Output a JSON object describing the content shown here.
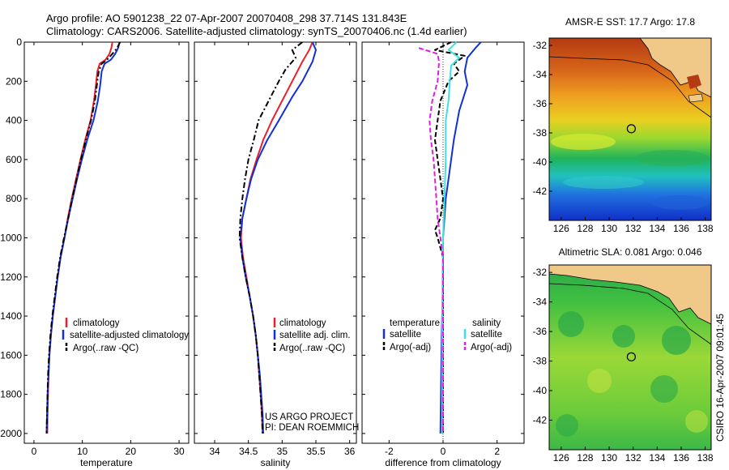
{
  "header": {
    "line1": "Argo profile: AO 5901238_22 07-Apr-2007 20070408_298 37.714S 131.843E",
    "line2": "Climatology: CARS2006. Satellite-adjusted climatology: synTS_20070406.nc (1.4d earlier)"
  },
  "side_text": "CSIRO 16-Apr-2007 09:01:45",
  "colors": {
    "red": "#e8202a",
    "blue": "#1030d8",
    "black": "#000000",
    "cyan": "#40e0e0",
    "magenta": "#e020e0"
  },
  "chart_data": [
    {
      "type": "line",
      "name": "temperature",
      "xlabel": "temperature",
      "xlim": [
        -2,
        32
      ],
      "ylim": [
        0,
        2050
      ],
      "xticks": [
        0,
        10,
        20,
        30
      ],
      "yticks": [
        0,
        200,
        400,
        600,
        800,
        1000,
        1200,
        1400,
        1600,
        1800,
        2000
      ],
      "legend": [
        "climatology",
        "satellite-adjusted climatology",
        "Argo(..raw -QC)"
      ],
      "series": [
        {
          "name": "climatology",
          "color": "red",
          "style": "solid",
          "points": [
            [
              16.2,
              0
            ],
            [
              16.0,
              30
            ],
            [
              15.6,
              60
            ],
            [
              14.8,
              90
            ],
            [
              13.6,
              110
            ],
            [
              13.1,
              150
            ],
            [
              12.8,
              220
            ],
            [
              12.4,
              300
            ],
            [
              11.7,
              400
            ],
            [
              10.6,
              500
            ],
            [
              9.6,
              600
            ],
            [
              8.7,
              700
            ],
            [
              7.8,
              800
            ],
            [
              7.0,
              900
            ],
            [
              6.3,
              1000
            ],
            [
              5.5,
              1100
            ],
            [
              4.9,
              1200
            ],
            [
              4.4,
              1300
            ],
            [
              3.9,
              1400
            ],
            [
              3.5,
              1500
            ],
            [
              3.2,
              1600
            ],
            [
              3.0,
              1700
            ],
            [
              2.9,
              1800
            ],
            [
              2.8,
              1900
            ],
            [
              2.75,
              2000
            ]
          ]
        },
        {
          "name": "satellite-adjusted climatology",
          "color": "blue",
          "style": "solid",
          "points": [
            [
              17.7,
              0
            ],
            [
              17.4,
              30
            ],
            [
              16.8,
              60
            ],
            [
              15.9,
              90
            ],
            [
              14.6,
              110
            ],
            [
              14.0,
              150
            ],
            [
              13.7,
              220
            ],
            [
              13.2,
              300
            ],
            [
              12.3,
              400
            ],
            [
              11.0,
              500
            ],
            [
              9.9,
              600
            ],
            [
              8.9,
              700
            ],
            [
              8.0,
              800
            ],
            [
              7.1,
              900
            ],
            [
              6.3,
              1000
            ],
            [
              5.5,
              1100
            ],
            [
              4.9,
              1200
            ],
            [
              4.4,
              1300
            ],
            [
              3.9,
              1400
            ],
            [
              3.5,
              1500
            ],
            [
              3.2,
              1600
            ],
            [
              3.0,
              1700
            ],
            [
              2.8,
              1800
            ],
            [
              2.7,
              1900
            ],
            [
              2.6,
              2000
            ]
          ]
        },
        {
          "name": "Argo(..raw -QC)",
          "color": "black",
          "style": "dashdot",
          "points": [
            [
              17.8,
              0
            ],
            [
              17.2,
              30
            ],
            [
              16.2,
              60
            ],
            [
              15.1,
              90
            ],
            [
              14.0,
              110
            ],
            [
              13.4,
              150
            ],
            [
              13.0,
              220
            ],
            [
              12.6,
              300
            ],
            [
              11.8,
              400
            ],
            [
              10.7,
              500
            ],
            [
              9.7,
              600
            ],
            [
              8.8,
              700
            ],
            [
              7.9,
              800
            ],
            [
              7.1,
              900
            ],
            [
              6.2,
              1000
            ],
            [
              5.4,
              1100
            ],
            [
              4.8,
              1200
            ],
            [
              4.3,
              1300
            ],
            [
              3.8,
              1400
            ],
            [
              3.4,
              1500
            ],
            [
              3.1,
              1600
            ],
            [
              2.9,
              1700
            ],
            [
              2.8,
              1800
            ],
            [
              2.7,
              1900
            ],
            [
              2.6,
              2000
            ]
          ]
        }
      ]
    },
    {
      "type": "line",
      "name": "salinity",
      "xlabel": "salinity",
      "xlim": [
        33.7,
        36.1
      ],
      "ylim": [
        0,
        2050
      ],
      "xticks": [
        34,
        34.5,
        35,
        35.5,
        36
      ],
      "yticks": [
        0,
        200,
        400,
        600,
        800,
        1000,
        1200,
        1400,
        1600,
        1800,
        2000
      ],
      "legend": [
        "climatology",
        "satellite adj. clim.",
        "Argo(..raw -QC)"
      ],
      "annotation": [
        "US ARGO PROJECT",
        "PI: DEAN ROEMMICH"
      ],
      "series": [
        {
          "name": "climatology",
          "color": "red",
          "style": "solid",
          "points": [
            [
              35.45,
              0
            ],
            [
              35.4,
              40
            ],
            [
              35.3,
              100
            ],
            [
              35.15,
              200
            ],
            [
              35.0,
              300
            ],
            [
              34.85,
              400
            ],
            [
              34.72,
              500
            ],
            [
              34.62,
              600
            ],
            [
              34.53,
              700
            ],
            [
              34.47,
              800
            ],
            [
              34.41,
              900
            ],
            [
              34.39,
              1000
            ],
            [
              34.42,
              1100
            ],
            [
              34.47,
              1200
            ],
            [
              34.52,
              1300
            ],
            [
              34.57,
              1400
            ],
            [
              34.61,
              1500
            ],
            [
              34.64,
              1600
            ],
            [
              34.66,
              1700
            ],
            [
              34.68,
              1800
            ],
            [
              34.7,
              1900
            ],
            [
              34.71,
              2000
            ]
          ]
        },
        {
          "name": "satellite adj. clim.",
          "color": "blue",
          "style": "solid",
          "points": [
            [
              35.45,
              0
            ],
            [
              35.5,
              40
            ],
            [
              35.45,
              100
            ],
            [
              35.3,
              200
            ],
            [
              35.15,
              280
            ],
            [
              34.95,
              400
            ],
            [
              34.78,
              500
            ],
            [
              34.64,
              600
            ],
            [
              34.54,
              700
            ],
            [
              34.47,
              800
            ],
            [
              34.41,
              900
            ],
            [
              34.38,
              1000
            ],
            [
              34.41,
              1100
            ],
            [
              34.46,
              1200
            ],
            [
              34.52,
              1300
            ],
            [
              34.57,
              1400
            ],
            [
              34.61,
              1500
            ],
            [
              34.64,
              1600
            ],
            [
              34.67,
              1700
            ],
            [
              34.69,
              1800
            ],
            [
              34.71,
              1900
            ],
            [
              34.72,
              2000
            ]
          ]
        },
        {
          "name": "Argo(..raw -QC)",
          "color": "black",
          "style": "dashdot",
          "points": [
            [
              35.3,
              0
            ],
            [
              35.15,
              40
            ],
            [
              35.2,
              80
            ],
            [
              35.05,
              140
            ],
            [
              34.95,
              200
            ],
            [
              34.8,
              300
            ],
            [
              34.65,
              400
            ],
            [
              34.58,
              500
            ],
            [
              34.5,
              600
            ],
            [
              34.45,
              700
            ],
            [
              34.41,
              800
            ],
            [
              34.38,
              900
            ],
            [
              34.37,
              1000
            ],
            [
              34.41,
              1100
            ],
            [
              34.46,
              1200
            ],
            [
              34.52,
              1300
            ],
            [
              34.57,
              1400
            ],
            [
              34.61,
              1500
            ],
            [
              34.64,
              1600
            ],
            [
              34.66,
              1700
            ],
            [
              34.68,
              1800
            ],
            [
              34.7,
              1900
            ],
            [
              34.71,
              2000
            ]
          ]
        }
      ]
    },
    {
      "type": "line",
      "name": "difference",
      "xlabel": "difference from climatology",
      "xlim": [
        -3,
        3
      ],
      "ylim": [
        0,
        2050
      ],
      "xticks": [
        -2,
        0,
        2
      ],
      "yticks": [
        0,
        200,
        400,
        600,
        800,
        1000,
        1200,
        1400,
        1600,
        1800,
        2000
      ],
      "legend_left_title": "temperature",
      "legend_right_title": "salinity",
      "legend": [
        "satellite",
        "Argo(-adj)",
        "satellite",
        "Argo(-adj)"
      ],
      "series": [
        {
          "name": "temperature satellite",
          "color": "blue",
          "style": "solid",
          "points": [
            [
              1.4,
              0
            ],
            [
              1.2,
              30
            ],
            [
              0.9,
              80
            ],
            [
              0.8,
              150
            ],
            [
              0.9,
              220
            ],
            [
              0.6,
              350
            ],
            [
              0.4,
              500
            ],
            [
              0.3,
              600
            ],
            [
              0.2,
              700
            ],
            [
              0.1,
              800
            ],
            [
              0.05,
              900
            ],
            [
              0.0,
              1000
            ],
            [
              0.0,
              1200
            ],
            [
              -0.05,
              1500
            ],
            [
              -0.1,
              2000
            ]
          ]
        },
        {
          "name": "temperature Argo(-adj)",
          "color": "black",
          "style": "dashed",
          "points": [
            [
              0.3,
              0
            ],
            [
              -0.3,
              40
            ],
            [
              0.8,
              70
            ],
            [
              0.4,
              110
            ],
            [
              0.6,
              150
            ],
            [
              0.2,
              200
            ],
            [
              -0.1,
              300
            ],
            [
              -0.2,
              400
            ],
            [
              -0.3,
              500
            ],
            [
              -0.2,
              600
            ],
            [
              -0.1,
              700
            ],
            [
              0.0,
              800
            ],
            [
              -0.1,
              900
            ],
            [
              -0.3,
              960
            ],
            [
              -0.2,
              1000
            ],
            [
              0.0,
              1100
            ],
            [
              0.0,
              1300
            ],
            [
              0.0,
              2000
            ]
          ]
        },
        {
          "name": "salinity satellite",
          "color": "cyan",
          "style": "solid",
          "points": [
            [
              0.5,
              0
            ],
            [
              0.2,
              40
            ],
            [
              0.6,
              80
            ],
            [
              0.3,
              120
            ],
            [
              0.25,
              200
            ],
            [
              0.2,
              300
            ],
            [
              0.1,
              400
            ],
            [
              0.1,
              600
            ],
            [
              0.05,
              800
            ],
            [
              0.0,
              1000
            ],
            [
              -0.02,
              1200
            ],
            [
              -0.03,
              1500
            ],
            [
              -0.04,
              2000
            ]
          ]
        },
        {
          "name": "salinity Argo(-adj)",
          "color": "magenta",
          "style": "dashed",
          "points": [
            [
              -0.9,
              30
            ],
            [
              -0.2,
              60
            ],
            [
              -0.15,
              100
            ],
            [
              -0.2,
              200
            ],
            [
              -0.4,
              300
            ],
            [
              -0.5,
              400
            ],
            [
              -0.45,
              500
            ],
            [
              -0.35,
              600
            ],
            [
              -0.3,
              700
            ],
            [
              -0.25,
              800
            ],
            [
              -0.2,
              900
            ],
            [
              -0.1,
              1000
            ],
            [
              0.0,
              1100
            ],
            [
              0.0,
              2000
            ]
          ]
        }
      ]
    }
  ],
  "maps": [
    {
      "title": "AMSR-E SST: 17.7 Argo: 17.8",
      "xticks": [
        126,
        128,
        130,
        132,
        134,
        136,
        138
      ],
      "yticks": [
        -32,
        -34,
        -36,
        -38,
        -40,
        -42
      ],
      "xlim": [
        125,
        138.5
      ],
      "ylim": [
        -44,
        -31.5
      ],
      "float_lon": 131.843,
      "float_lat": -37.714
    },
    {
      "title": "Altimetric SLA: 0.081 Argo: 0.046",
      "xticks": [
        126,
        128,
        130,
        132,
        134,
        136,
        138
      ],
      "yticks": [
        -32,
        -34,
        -36,
        -38,
        -40,
        -42
      ],
      "xlim": [
        125,
        138.5
      ],
      "ylim": [
        -44,
        -31.5
      ],
      "float_lon": 131.843,
      "float_lat": -37.714
    }
  ]
}
